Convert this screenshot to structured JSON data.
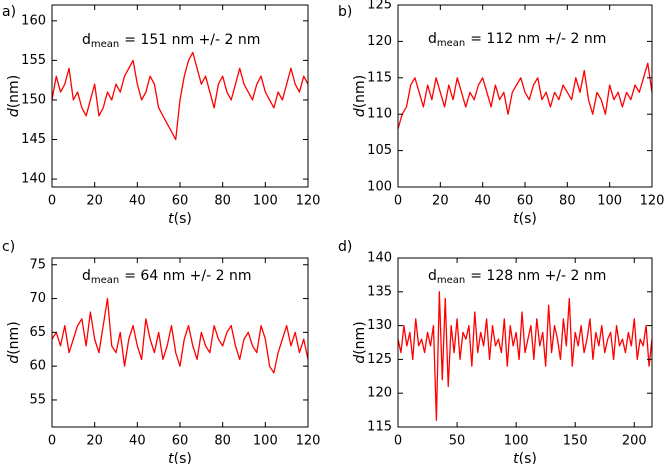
{
  "chart_data": [
    {
      "type": "line",
      "panel_label": "a)",
      "annotation": {
        "base": "d",
        "sub": "mean",
        "text": "= 151 nm +/- 2 nm"
      },
      "xlabel": {
        "var": "t",
        "unit": "(s)"
      },
      "ylabel": {
        "var": "d",
        "unit": "(nm)"
      },
      "xlim": [
        0,
        120
      ],
      "xticks": [
        0,
        20,
        40,
        60,
        80,
        100,
        120
      ],
      "ylim": [
        139,
        162
      ],
      "yticks": [
        140,
        145,
        150,
        155,
        160
      ],
      "color": "#ff0000",
      "x": [
        0,
        2,
        4,
        6,
        8,
        10,
        12,
        14,
        16,
        18,
        20,
        22,
        24,
        26,
        28,
        30,
        32,
        34,
        36,
        38,
        40,
        42,
        44,
        46,
        48,
        50,
        52,
        54,
        56,
        58,
        60,
        62,
        64,
        66,
        68,
        70,
        72,
        74,
        76,
        78,
        80,
        82,
        84,
        86,
        88,
        90,
        92,
        94,
        96,
        98,
        100,
        102,
        104,
        106,
        108,
        110,
        112,
        114,
        116,
        118,
        120
      ],
      "values": [
        150,
        153,
        151,
        152,
        154,
        150,
        151,
        149,
        148,
        150,
        152,
        148,
        149,
        151,
        150,
        152,
        151,
        153,
        154,
        155,
        152,
        150,
        151,
        153,
        152,
        149,
        148,
        147,
        146,
        145,
        150,
        153,
        155,
        156,
        154,
        152,
        153,
        151,
        149,
        152,
        153,
        151,
        150,
        152,
        154,
        152,
        151,
        150,
        152,
        153,
        151,
        150,
        149,
        151,
        150,
        152,
        154,
        152,
        151,
        153,
        152
      ]
    },
    {
      "type": "line",
      "panel_label": "b)",
      "annotation": {
        "base": "d",
        "sub": "mean",
        "text": "= 112 nm +/- 2 nm"
      },
      "xlabel": {
        "var": "t",
        "unit": "(s)"
      },
      "ylabel": {
        "var": "d",
        "unit": "(nm)"
      },
      "xlim": [
        0,
        120
      ],
      "xticks": [
        0,
        20,
        40,
        60,
        80,
        100,
        120
      ],
      "ylim": [
        100,
        125
      ],
      "yticks": [
        100,
        105,
        110,
        115,
        120,
        125
      ],
      "color": "#ff0000",
      "x": [
        0,
        2,
        4,
        6,
        8,
        10,
        12,
        14,
        16,
        18,
        20,
        22,
        24,
        26,
        28,
        30,
        32,
        34,
        36,
        38,
        40,
        42,
        44,
        46,
        48,
        50,
        52,
        54,
        56,
        58,
        60,
        62,
        64,
        66,
        68,
        70,
        72,
        74,
        76,
        78,
        80,
        82,
        84,
        86,
        88,
        90,
        92,
        94,
        96,
        98,
        100,
        102,
        104,
        106,
        108,
        110,
        112,
        114,
        116,
        118,
        120
      ],
      "values": [
        108,
        110,
        111,
        114,
        115,
        113,
        111,
        114,
        112,
        115,
        113,
        111,
        114,
        112,
        115,
        113,
        111,
        113,
        112,
        114,
        115,
        113,
        111,
        114,
        112,
        113,
        110,
        113,
        114,
        115,
        113,
        112,
        114,
        115,
        112,
        113,
        111,
        113,
        112,
        114,
        113,
        112,
        115,
        113,
        116,
        112,
        110,
        113,
        112,
        110,
        114,
        112,
        113,
        111,
        113,
        112,
        114,
        113,
        115,
        117,
        113
      ]
    },
    {
      "type": "line",
      "panel_label": "c)",
      "annotation": {
        "base": "d",
        "sub": "mean",
        "text": "= 64 nm +/- 2 nm"
      },
      "xlabel": {
        "var": "t",
        "unit": "(s)"
      },
      "ylabel": {
        "var": "d",
        "unit": "(nm)"
      },
      "xlim": [
        0,
        120
      ],
      "xticks": [
        0,
        20,
        40,
        60,
        80,
        100,
        120
      ],
      "ylim": [
        51,
        76
      ],
      "yticks": [
        55,
        60,
        65,
        70,
        75
      ],
      "color": "#ff0000",
      "x": [
        0,
        2,
        4,
        6,
        8,
        10,
        12,
        14,
        16,
        18,
        20,
        22,
        24,
        26,
        28,
        30,
        32,
        34,
        36,
        38,
        40,
        42,
        44,
        46,
        48,
        50,
        52,
        54,
        56,
        58,
        60,
        62,
        64,
        66,
        68,
        70,
        72,
        74,
        76,
        78,
        80,
        82,
        84,
        86,
        88,
        90,
        92,
        94,
        96,
        98,
        100,
        102,
        104,
        106,
        108,
        110,
        112,
        114,
        116,
        118,
        120
      ],
      "values": [
        64,
        65,
        63,
        66,
        62,
        64,
        66,
        67,
        63,
        68,
        64,
        62,
        66,
        70,
        63,
        62,
        65,
        60,
        64,
        66,
        63,
        61,
        67,
        64,
        62,
        65,
        61,
        63,
        66,
        62,
        60,
        64,
        66,
        63,
        61,
        65,
        63,
        62,
        66,
        64,
        63,
        65,
        66,
        63,
        61,
        64,
        65,
        63,
        62,
        66,
        64,
        60,
        59,
        62,
        64,
        66,
        63,
        65,
        62,
        64,
        61
      ]
    },
    {
      "type": "line",
      "panel_label": "d)",
      "annotation": {
        "base": "d",
        "sub": "mean",
        "text": "= 128 nm +/- 2 nm"
      },
      "xlabel": {
        "var": "t",
        "unit": "(s)"
      },
      "ylabel": {
        "var": "d",
        "unit": "(nm)"
      },
      "xlim": [
        0,
        215
      ],
      "xticks": [
        0,
        50,
        100,
        150,
        200
      ],
      "ylim": [
        115,
        140
      ],
      "yticks": [
        115,
        120,
        125,
        130,
        135,
        140
      ],
      "color": "#ff0000",
      "x": [
        0,
        2.5,
        5,
        7.5,
        10,
        12.5,
        15,
        17.5,
        20,
        22.5,
        25,
        27.5,
        30,
        32.5,
        35,
        37.5,
        40,
        42.5,
        45,
        47.5,
        50,
        52.5,
        55,
        57.5,
        60,
        62.5,
        65,
        67.5,
        70,
        72.5,
        75,
        77.5,
        80,
        82.5,
        85,
        87.5,
        90,
        92.5,
        95,
        97.5,
        100,
        102.5,
        105,
        107.5,
        110,
        112.5,
        115,
        117.5,
        120,
        122.5,
        125,
        127.5,
        130,
        132.5,
        135,
        137.5,
        140,
        142.5,
        145,
        147.5,
        150,
        152.5,
        155,
        157.5,
        160,
        162.5,
        165,
        167.5,
        170,
        172.5,
        175,
        177.5,
        180,
        182.5,
        185,
        187.5,
        190,
        192.5,
        195,
        197.5,
        200,
        202.5,
        205,
        207.5,
        210,
        212.5,
        215
      ],
      "values": [
        128,
        126,
        130,
        127,
        129,
        125,
        131,
        127,
        128,
        126,
        129,
        127,
        130,
        116,
        135,
        122,
        134,
        121,
        130,
        126,
        131,
        125,
        129,
        128,
        130,
        124,
        132,
        126,
        129,
        127,
        131,
        125,
        130,
        127,
        128,
        126,
        131,
        124,
        130,
        127,
        129,
        125,
        132,
        126,
        128,
        130,
        125,
        131,
        127,
        129,
        124,
        133,
        126,
        130,
        128,
        125,
        131,
        127,
        134,
        124,
        129,
        127,
        130,
        126,
        128,
        131,
        125,
        129,
        127,
        130,
        126,
        128,
        129,
        125,
        130,
        127,
        128,
        126,
        129,
        127,
        131,
        125,
        128,
        127,
        130,
        124,
        128
      ]
    }
  ]
}
